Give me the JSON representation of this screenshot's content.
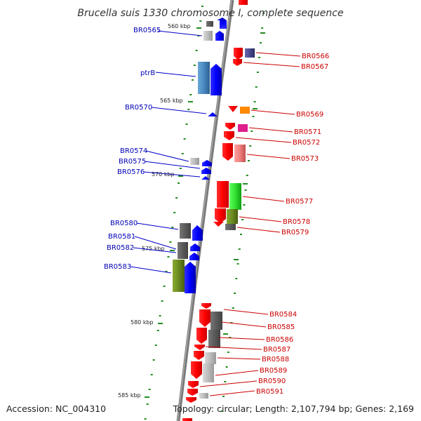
{
  "header": {
    "title": "Brucella suis 1330 chromosome I, complete sequence"
  },
  "footer": {
    "accession": "Accession: NC_004310",
    "topology": "Topology: circular; Length: 2,107,794 bp; Genes: 2,169"
  },
  "colors": {
    "forward_label": "#0000b4",
    "reverse_label": "#cc0000",
    "backbone": "#808080",
    "ticks": "#228b22"
  },
  "scale_marks": [
    "560 kbp",
    "565 kbp",
    "570 kbp",
    "575 kbp",
    "580 kbp",
    "585 kbp"
  ],
  "forward_genes": [
    "BR0565",
    "ptrB",
    "BR0570",
    "BR0574",
    "BR0575",
    "BR0576",
    "BR0580",
    "BR0581",
    "BR0582",
    "BR0583"
  ],
  "reverse_genes": [
    "BR0566",
    "BR0567",
    "BR0569",
    "BR0571",
    "BR0572",
    "BR0573",
    "BR0577",
    "BR0578",
    "BR0579",
    "BR0584",
    "BR0585",
    "BR0586",
    "BR0587",
    "BR0588",
    "BR0589",
    "BR0590",
    "BR0591"
  ]
}
